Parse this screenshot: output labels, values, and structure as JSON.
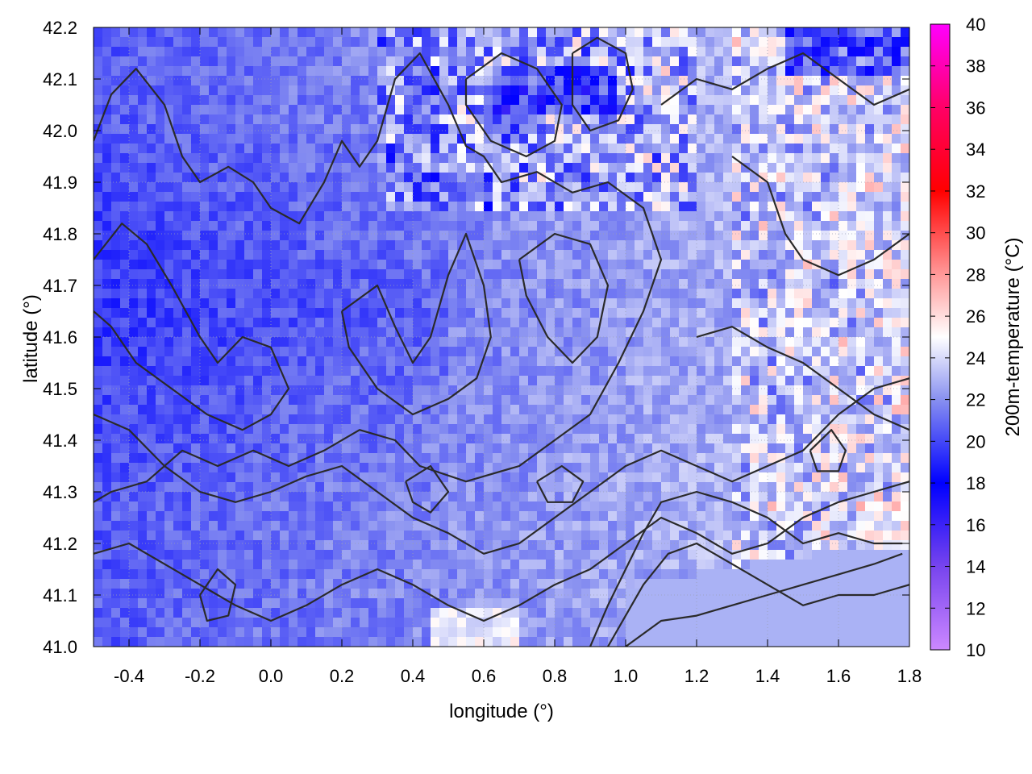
{
  "chart_data": {
    "type": "heatmap",
    "title": "",
    "xlabel": "longitude (°)",
    "ylabel": "latitude (°)",
    "colorbar_label": "200m-temperature (°C)",
    "xlim": [
      -0.5,
      1.8
    ],
    "ylim": [
      41.0,
      42.2
    ],
    "x_ticks": [
      -0.4,
      -0.2,
      0.0,
      0.2,
      0.4,
      0.6,
      0.8,
      1.0,
      1.2,
      1.4,
      1.6,
      1.8
    ],
    "x_tick_labels": [
      "-0.4",
      "-0.2",
      "0.0",
      "0.2",
      "0.4",
      "0.6",
      "0.8",
      "1.0",
      "1.2",
      "1.4",
      "1.6",
      "1.8"
    ],
    "y_ticks": [
      41.0,
      41.1,
      41.2,
      41.3,
      41.4,
      41.5,
      41.6,
      41.7,
      41.8,
      41.9,
      42.0,
      42.1,
      42.2
    ],
    "y_tick_labels": [
      "41.0",
      "41.1",
      "41.2",
      "41.3",
      "41.4",
      "41.5",
      "41.6",
      "41.7",
      "41.8",
      "41.9",
      "42.0",
      "42.1",
      "42.2"
    ],
    "colorbar_range": [
      10,
      40
    ],
    "colorbar_ticks": [
      10,
      12,
      14,
      16,
      18,
      20,
      22,
      24,
      26,
      28,
      30,
      32,
      34,
      36,
      38,
      40
    ],
    "colorbar_tick_labels": [
      "10",
      "12",
      "14",
      "16",
      "18",
      "20",
      "22",
      "24",
      "26",
      "28",
      "30",
      "32",
      "34",
      "36",
      "38",
      "40"
    ],
    "colormap": [
      {
        "value": 10,
        "color": "#cc88ff"
      },
      {
        "value": 14,
        "color": "#7744ee"
      },
      {
        "value": 18,
        "color": "#0000ff"
      },
      {
        "value": 22,
        "color": "#8890f0"
      },
      {
        "value": 25,
        "color": "#ffffff"
      },
      {
        "value": 28,
        "color": "#ff9999"
      },
      {
        "value": 32,
        "color": "#ff0000"
      },
      {
        "value": 36,
        "color": "#ff0066"
      },
      {
        "value": 40,
        "color": "#ff00ff"
      }
    ],
    "sea_fill_color": "#aab2f5",
    "contour_color": "#2a2a2a",
    "grid": true,
    "grid_style": "dotted",
    "contour_lines": [
      [
        [
          -0.5,
          41.98
        ],
        [
          -0.45,
          42.07
        ],
        [
          -0.38,
          42.12
        ],
        [
          -0.3,
          42.05
        ],
        [
          -0.25,
          41.95
        ],
        [
          -0.2,
          41.9
        ],
        [
          -0.12,
          41.93
        ],
        [
          -0.05,
          41.9
        ],
        [
          0.0,
          41.85
        ],
        [
          0.08,
          41.82
        ],
        [
          0.15,
          41.9
        ],
        [
          0.2,
          41.98
        ],
        [
          0.25,
          41.93
        ],
        [
          0.3,
          41.98
        ],
        [
          0.35,
          42.1
        ],
        [
          0.42,
          42.15
        ],
        [
          0.5,
          42.05
        ],
        [
          0.55,
          41.97
        ],
        [
          0.6,
          41.95
        ],
        [
          0.65,
          41.9
        ],
        [
          0.75,
          41.92
        ],
        [
          0.85,
          41.88
        ],
        [
          0.95,
          41.9
        ],
        [
          1.05,
          41.85
        ],
        [
          1.1,
          41.75
        ],
        [
          1.05,
          41.65
        ],
        [
          0.98,
          41.55
        ],
        [
          0.9,
          41.45
        ],
        [
          0.8,
          41.4
        ],
        [
          0.7,
          41.35
        ],
        [
          0.55,
          41.32
        ],
        [
          0.42,
          41.35
        ],
        [
          0.35,
          41.4
        ],
        [
          0.25,
          41.42
        ],
        [
          0.15,
          41.38
        ],
        [
          0.05,
          41.35
        ],
        [
          -0.05,
          41.38
        ],
        [
          -0.15,
          41.35
        ],
        [
          -0.25,
          41.38
        ],
        [
          -0.35,
          41.32
        ],
        [
          -0.45,
          41.3
        ],
        [
          -0.5,
          41.28
        ]
      ],
      [
        [
          -0.5,
          41.75
        ],
        [
          -0.42,
          41.82
        ],
        [
          -0.35,
          41.78
        ],
        [
          -0.28,
          41.7
        ],
        [
          -0.2,
          41.6
        ],
        [
          -0.15,
          41.55
        ],
        [
          -0.08,
          41.6
        ],
        [
          0.0,
          41.58
        ],
        [
          0.05,
          41.5
        ],
        [
          0.0,
          41.45
        ],
        [
          -0.08,
          41.42
        ],
        [
          -0.18,
          41.45
        ],
        [
          -0.28,
          41.5
        ],
        [
          -0.38,
          41.55
        ],
        [
          -0.45,
          41.62
        ],
        [
          -0.5,
          41.65
        ]
      ],
      [
        [
          -0.5,
          41.45
        ],
        [
          -0.4,
          41.42
        ],
        [
          -0.3,
          41.35
        ],
        [
          -0.2,
          41.3
        ],
        [
          -0.1,
          41.28
        ],
        [
          0.0,
          41.3
        ],
        [
          0.1,
          41.33
        ],
        [
          0.2,
          41.35
        ],
        [
          0.3,
          41.3
        ],
        [
          0.4,
          41.25
        ],
        [
          0.5,
          41.22
        ],
        [
          0.6,
          41.18
        ],
        [
          0.7,
          41.2
        ],
        [
          0.8,
          41.25
        ],
        [
          0.9,
          41.3
        ],
        [
          1.0,
          41.35
        ],
        [
          1.1,
          41.38
        ],
        [
          1.2,
          41.35
        ],
        [
          1.3,
          41.32
        ],
        [
          1.4,
          41.35
        ],
        [
          1.5,
          41.38
        ],
        [
          1.6,
          41.45
        ],
        [
          1.7,
          41.5
        ],
        [
          1.8,
          41.52
        ]
      ],
      [
        [
          -0.5,
          41.18
        ],
        [
          -0.4,
          41.2
        ],
        [
          -0.3,
          41.16
        ],
        [
          -0.2,
          41.12
        ],
        [
          -0.1,
          41.08
        ],
        [
          0.0,
          41.05
        ],
        [
          0.1,
          41.08
        ],
        [
          0.2,
          41.12
        ],
        [
          0.3,
          41.15
        ],
        [
          0.4,
          41.12
        ],
        [
          0.5,
          41.08
        ],
        [
          0.6,
          41.05
        ],
        [
          0.7,
          41.08
        ],
        [
          0.8,
          41.12
        ],
        [
          0.9,
          41.15
        ],
        [
          1.0,
          41.2
        ],
        [
          1.1,
          41.25
        ],
        [
          1.2,
          41.22
        ],
        [
          1.3,
          41.18
        ],
        [
          1.4,
          41.2
        ],
        [
          1.5,
          41.25
        ],
        [
          1.6,
          41.28
        ],
        [
          1.7,
          41.3
        ],
        [
          1.8,
          41.32
        ]
      ],
      [
        [
          0.9,
          41.0
        ],
        [
          0.95,
          41.08
        ],
        [
          1.0,
          41.15
        ],
        [
          1.05,
          41.22
        ],
        [
          1.1,
          41.28
        ],
        [
          1.2,
          41.3
        ],
        [
          1.3,
          41.28
        ],
        [
          1.4,
          41.25
        ],
        [
          1.5,
          41.2
        ],
        [
          1.6,
          41.22
        ],
        [
          1.7,
          41.2
        ],
        [
          1.78,
          41.2
        ]
      ],
      [
        [
          0.95,
          41.0
        ],
        [
          1.0,
          41.06
        ],
        [
          1.05,
          41.12
        ],
        [
          1.12,
          41.18
        ],
        [
          1.2,
          41.2
        ],
        [
          1.3,
          41.16
        ],
        [
          1.4,
          41.12
        ],
        [
          1.5,
          41.08
        ],
        [
          1.6,
          41.1
        ],
        [
          1.7,
          41.1
        ],
        [
          1.8,
          41.12
        ]
      ],
      [
        [
          1.0,
          41.0
        ],
        [
          1.1,
          41.05
        ],
        [
          1.2,
          41.06
        ],
        [
          1.3,
          41.08
        ],
        [
          1.4,
          41.1
        ],
        [
          1.5,
          41.12
        ],
        [
          1.6,
          41.14
        ],
        [
          1.7,
          41.16
        ],
        [
          1.78,
          41.18
        ]
      ],
      [
        [
          0.2,
          41.65
        ],
        [
          0.3,
          41.7
        ],
        [
          0.35,
          41.62
        ],
        [
          0.4,
          41.55
        ],
        [
          0.45,
          41.6
        ],
        [
          0.5,
          41.72
        ],
        [
          0.55,
          41.8
        ],
        [
          0.6,
          41.7
        ],
        [
          0.62,
          41.6
        ],
        [
          0.58,
          41.52
        ],
        [
          0.5,
          41.48
        ],
        [
          0.4,
          41.45
        ],
        [
          0.3,
          41.5
        ],
        [
          0.22,
          41.58
        ],
        [
          0.2,
          41.65
        ]
      ],
      [
        [
          0.7,
          41.75
        ],
        [
          0.8,
          41.8
        ],
        [
          0.9,
          41.78
        ],
        [
          0.95,
          41.7
        ],
        [
          0.92,
          41.6
        ],
        [
          0.85,
          41.55
        ],
        [
          0.78,
          41.6
        ],
        [
          0.72,
          41.68
        ],
        [
          0.7,
          41.75
        ]
      ],
      [
        [
          0.55,
          42.1
        ],
        [
          0.65,
          42.15
        ],
        [
          0.75,
          42.12
        ],
        [
          0.82,
          42.05
        ],
        [
          0.8,
          41.98
        ],
        [
          0.72,
          41.95
        ],
        [
          0.62,
          41.98
        ],
        [
          0.55,
          42.05
        ],
        [
          0.55,
          42.1
        ]
      ],
      [
        [
          0.85,
          42.15
        ],
        [
          0.92,
          42.18
        ],
        [
          1.0,
          42.15
        ],
        [
          1.02,
          42.08
        ],
        [
          0.98,
          42.02
        ],
        [
          0.9,
          42.0
        ],
        [
          0.85,
          42.05
        ],
        [
          0.85,
          42.15
        ]
      ],
      [
        [
          1.1,
          42.05
        ],
        [
          1.2,
          42.1
        ],
        [
          1.3,
          42.08
        ],
        [
          1.4,
          42.12
        ],
        [
          1.5,
          42.15
        ],
        [
          1.6,
          42.1
        ],
        [
          1.7,
          42.05
        ],
        [
          1.8,
          42.08
        ]
      ],
      [
        [
          1.3,
          41.95
        ],
        [
          1.4,
          41.9
        ],
        [
          1.45,
          41.8
        ],
        [
          1.5,
          41.75
        ],
        [
          1.6,
          41.72
        ],
        [
          1.7,
          41.75
        ],
        [
          1.8,
          41.8
        ]
      ],
      [
        [
          1.2,
          41.6
        ],
        [
          1.3,
          41.62
        ],
        [
          1.4,
          41.58
        ],
        [
          1.5,
          41.55
        ],
        [
          1.6,
          41.5
        ],
        [
          1.7,
          41.45
        ],
        [
          1.8,
          41.42
        ]
      ],
      [
        [
          -0.2,
          41.1
        ],
        [
          -0.15,
          41.15
        ],
        [
          -0.1,
          41.12
        ],
        [
          -0.12,
          41.06
        ],
        [
          -0.18,
          41.05
        ],
        [
          -0.2,
          41.1
        ]
      ],
      [
        [
          0.38,
          41.32
        ],
        [
          0.45,
          41.35
        ],
        [
          0.5,
          41.3
        ],
        [
          0.45,
          41.26
        ],
        [
          0.4,
          41.28
        ],
        [
          0.38,
          41.32
        ]
      ],
      [
        [
          0.75,
          41.32
        ],
        [
          0.82,
          41.35
        ],
        [
          0.88,
          41.32
        ],
        [
          0.85,
          41.28
        ],
        [
          0.78,
          41.28
        ],
        [
          0.75,
          41.32
        ]
      ],
      [
        [
          1.52,
          41.38
        ],
        [
          1.58,
          41.42
        ],
        [
          1.62,
          41.38
        ],
        [
          1.6,
          41.34
        ],
        [
          1.54,
          41.34
        ],
        [
          1.52,
          41.38
        ]
      ]
    ]
  }
}
